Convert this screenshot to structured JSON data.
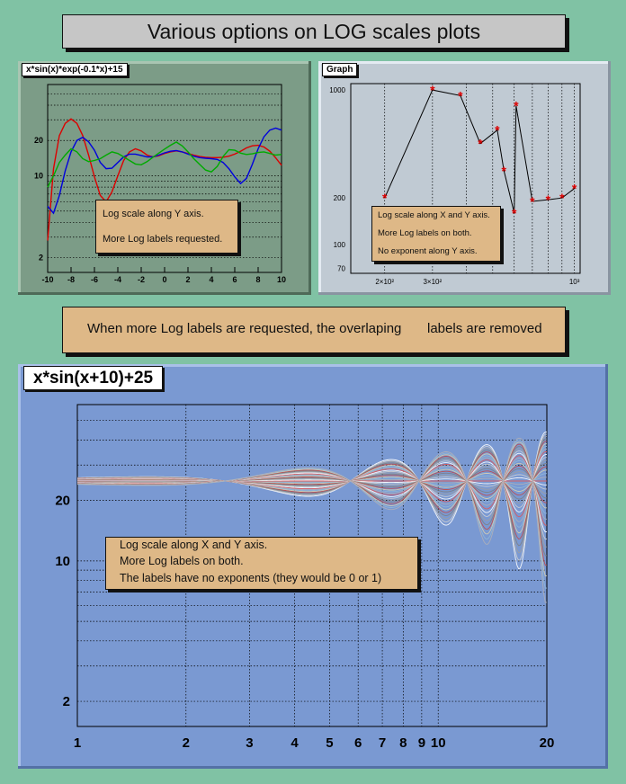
{
  "header": {
    "title": "Various options on LOG scales plots"
  },
  "banner": {
    "text_left": "When more Log labels are requested, the overlaping",
    "text_right": "labels are removed"
  },
  "colors": {
    "background": "#80c2a4",
    "panel1": "#7c9c87",
    "panel2": "#c0cad3",
    "panel3": "#7a99d2",
    "note": "#deb887"
  },
  "chart_data": [
    {
      "type": "line",
      "title": "x*sin(x)*exp(-0.1*x)+15",
      "xlim": [
        -10,
        10
      ],
      "ylim": [
        1.5,
        60
      ],
      "log_y": true,
      "grid": true,
      "x_ticks": [
        "-10",
        "-8",
        "-6",
        "-4",
        "-2",
        "0",
        "2",
        "4",
        "6",
        "8",
        "10"
      ],
      "y_ticks": [
        "2",
        "10",
        "20"
      ],
      "series": [
        {
          "color": "#dd0000",
          "x": [
            -10,
            -9.5,
            -9,
            -8.5,
            -8,
            -7.5,
            -7,
            -6.5,
            -6,
            -5.5,
            -5,
            -4.5,
            -4,
            -3.5,
            -3,
            -2.5,
            -2,
            -1.5,
            -1,
            -0.5,
            0,
            0.5,
            1,
            1.5,
            2,
            2.5,
            3,
            3.5,
            4,
            4.5,
            5,
            5.5,
            6,
            6.5,
            7,
            7.5,
            8,
            8.5,
            9,
            9.5,
            10
          ],
          "y": [
            2.8,
            11.5,
            22,
            28,
            30.5,
            28,
            22,
            15,
            9.8,
            6.8,
            6,
            7.3,
            10,
            13.5,
            16,
            17,
            16.3,
            15,
            14.5,
            14.8,
            15.5,
            16,
            16.3,
            16,
            15.5,
            15,
            14.6,
            14.4,
            14.3,
            14.3,
            14.4,
            14.7,
            15.3,
            16.2,
            17.3,
            18,
            18.2,
            17.6,
            16.2,
            14.2,
            12.3
          ]
        },
        {
          "color": "#0000dd",
          "x": [
            -10,
            -9.5,
            -9,
            -8.5,
            -8,
            -7.5,
            -7,
            -6.5,
            -6,
            -5.5,
            -5,
            -4.5,
            -4,
            -3.5,
            -3,
            -2.5,
            -2,
            -1.5,
            -1,
            -0.5,
            0,
            0.5,
            1,
            1.5,
            2,
            2.5,
            3,
            3.5,
            4,
            4.5,
            5,
            5.5,
            6,
            6.5,
            7,
            7.5,
            8,
            8.5,
            9,
            9.5,
            10
          ],
          "y": [
            5.5,
            4.8,
            6.8,
            11,
            16,
            20,
            21.3,
            19.5,
            16.5,
            13,
            11.5,
            11.6,
            13,
            14.5,
            15.3,
            15.3,
            14.9,
            14.5,
            14.5,
            15,
            15.7,
            16.2,
            16.4,
            16,
            15.3,
            14.7,
            14.3,
            14.1,
            14,
            13.8,
            13,
            11.5,
            9.8,
            8.6,
            9.5,
            12.5,
            17,
            21.5,
            24.5,
            25.5,
            24.5
          ]
        },
        {
          "color": "#00aa00",
          "x": [
            -10,
            -9.5,
            -9,
            -8.5,
            -8,
            -7.5,
            -7,
            -6.5,
            -6,
            -5.5,
            -5,
            -4.5,
            -4,
            -3.5,
            -3,
            -2.5,
            -2,
            -1.5,
            -1,
            -0.5,
            0,
            0.5,
            1,
            1.5,
            2,
            2.5,
            3,
            3.5,
            4,
            4.5,
            5,
            5.5,
            6,
            6.5,
            7,
            7.5,
            8,
            8.5,
            9,
            9.5,
            10
          ],
          "y": [
            8,
            10,
            13,
            15,
            17,
            16,
            14,
            13.2,
            13.5,
            14,
            15,
            16,
            15.5,
            14.5,
            13.5,
            12.6,
            12.4,
            13.2,
            14.4,
            15.6,
            16.9,
            18.2,
            19.4,
            18,
            16,
            14,
            12.5,
            11.2,
            10.8,
            12,
            14.6,
            16.7,
            16.5,
            15.6,
            15.2,
            15.4,
            15.8,
            16,
            15.5,
            15,
            15.2
          ]
        }
      ],
      "note": [
        "Log scale along Y axis.",
        "More Log labels requested."
      ]
    },
    {
      "type": "scatter",
      "title": "Graph",
      "xlim": [
        150,
        1050
      ],
      "ylim": [
        65,
        1100
      ],
      "log_x": true,
      "log_y": true,
      "grid": true,
      "x_ticks": [
        "2×10²",
        "3×10²",
        "10³"
      ],
      "y_ticks": [
        "70",
        "100",
        "200",
        "1000"
      ],
      "x": [
        200,
        300,
        380,
        450,
        520,
        550,
        600,
        610,
        700,
        800,
        900,
        1000
      ],
      "y": [
        200,
        1000,
        920,
        450,
        550,
        300,
        160,
        790,
        190,
        195,
        200,
        230
      ],
      "marker": "*",
      "marker_color": "#dd0000",
      "line_color": "#000000",
      "note": [
        "Log scale along X and Y axis.",
        "More Log labels on both.",
        "No exponent along Y axis."
      ]
    },
    {
      "type": "line",
      "title": "x*sin(x+10)+25",
      "xlim": [
        1,
        20
      ],
      "ylim": [
        1.5,
        60
      ],
      "log_x": true,
      "log_y": true,
      "grid": true,
      "x_ticks": [
        "1",
        "2",
        "3",
        "4",
        "5",
        "6",
        "7",
        "8",
        "9",
        "10",
        "20"
      ],
      "y_ticks": [
        "2",
        "10",
        "20"
      ],
      "curves": 35,
      "curve_colors": [
        "#ffffff",
        "#d0d0d0",
        "#a0a0a0",
        "#808080",
        "#c04848",
        "#d8d0b0",
        "#90b8d8",
        "#b0b0b8",
        "#e05858"
      ],
      "note": [
        "Log scale along X and Y axis.",
        "More Log labels on both.",
        "The labels have no exponents (they would be 0 or 1)"
      ]
    }
  ]
}
